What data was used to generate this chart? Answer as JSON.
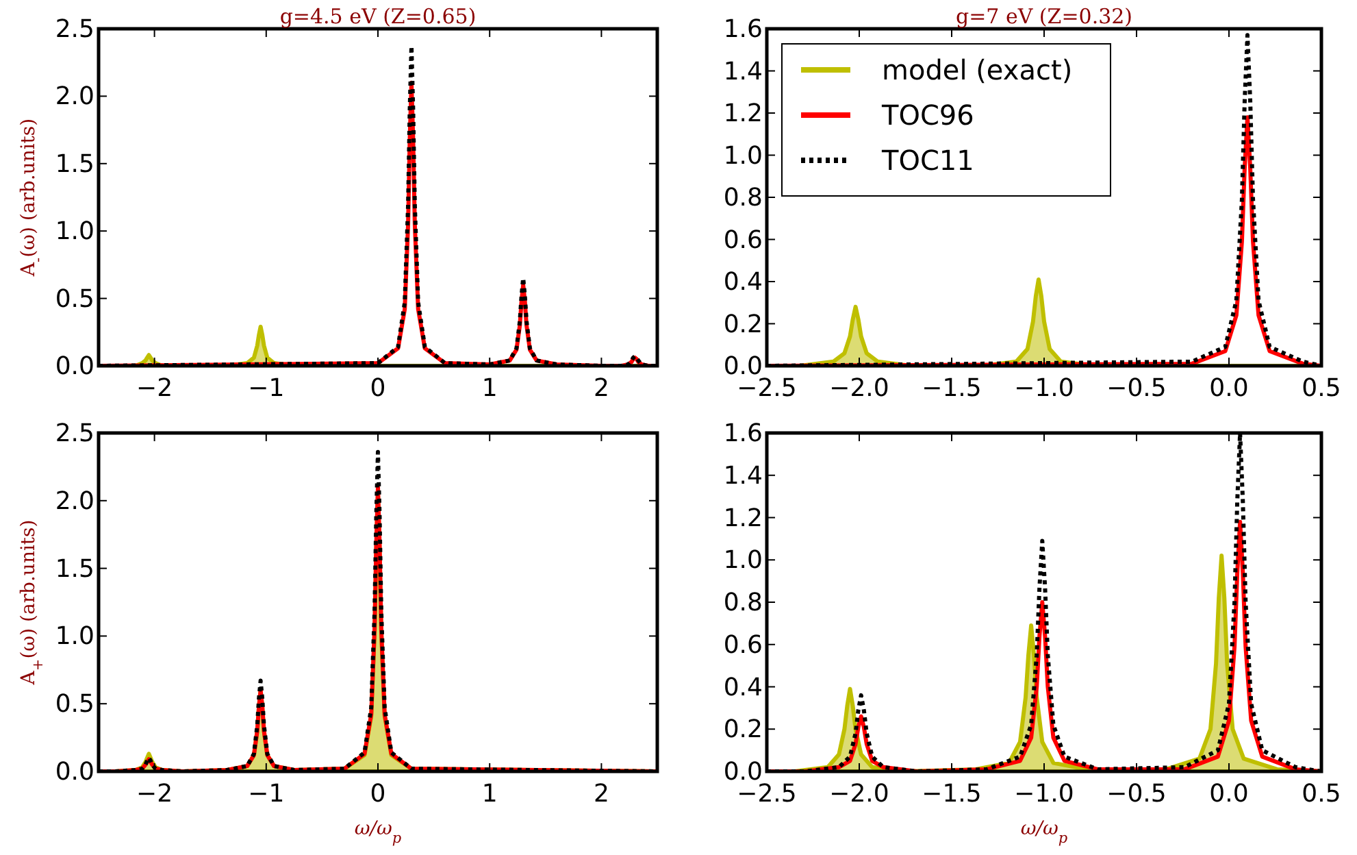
{
  "chart_data": [
    {
      "type": "line",
      "title": "g=4.5 eV (Z=0.65)",
      "ylabel": "A$_{-}$(ω) (arb.units)",
      "xlim": [
        -2.5,
        2.5
      ],
      "ylim": [
        0,
        2.5
      ],
      "xticks": [
        {
          "value": -2,
          "label": "−2"
        },
        {
          "value": -1,
          "label": "−1"
        },
        0,
        1,
        2
      ],
      "yticks": [
        {
          "value": 0,
          "label": "0.0"
        },
        0.5,
        {
          "value": 1,
          "label": "1.0"
        },
        1.5,
        {
          "value": 2,
          "label": "2.0"
        },
        2.5
      ],
      "series": [
        {
          "type": "area",
          "color": "#bfbf00",
          "x": [
            -2.5,
            -2.35,
            -2.17,
            -2.11,
            -2.08,
            -2.065,
            -2.05,
            -2.035,
            -2.02,
            -1.99,
            -1.93,
            -1.75,
            -1.35,
            -1.17,
            -1.11,
            -1.08,
            -1.065,
            -1.05,
            -1.035,
            -1.02,
            -0.99,
            -0.93,
            -0.75,
            2.5
          ],
          "values": [
            0,
            0,
            0,
            0.02,
            0.04,
            0.06,
            0.08,
            0.06,
            0.04,
            0.02,
            0,
            0,
            0,
            0.02,
            0.06,
            0.15,
            0.23,
            0.29,
            0.23,
            0.15,
            0.06,
            0.02,
            0,
            0
          ]
        },
        {
          "color": "#ff0000",
          "line_style": "solid",
          "x": [
            -2.5,
            0,
            0.18,
            0.24,
            0.27,
            0.285,
            0.3,
            0.315,
            0.33,
            0.36,
            0.42,
            0.6,
            1.0,
            1.18,
            1.24,
            1.27,
            1.285,
            1.3,
            1.315,
            1.33,
            1.36,
            1.42,
            1.6,
            2.0,
            2.18,
            2.24,
            2.27,
            2.285,
            2.3,
            2.315,
            2.33,
            2.36,
            2.42,
            2.5
          ],
          "values": [
            0,
            0.02,
            0.13,
            0.42,
            1.05,
            1.68,
            2.1,
            1.68,
            1.05,
            0.42,
            0.13,
            0.02,
            0.01,
            0.04,
            0.12,
            0.3,
            0.48,
            0.6,
            0.48,
            0.3,
            0.12,
            0.04,
            0.01,
            0,
            0,
            0.01,
            0.03,
            0.05,
            0.06,
            0.05,
            0.03,
            0.01,
            0,
            0
          ]
        },
        {
          "color": "#000000",
          "line_style": "dotted",
          "x": [
            -2.5,
            0,
            0.18,
            0.24,
            0.27,
            0.285,
            0.3,
            0.315,
            0.33,
            0.36,
            0.42,
            0.6,
            1.0,
            1.18,
            1.24,
            1.27,
            1.285,
            1.3,
            1.315,
            1.33,
            1.36,
            1.42,
            1.6,
            2.0,
            2.18,
            2.24,
            2.27,
            2.285,
            2.3,
            2.315,
            2.33,
            2.36,
            2.42,
            2.5
          ],
          "values": [
            0,
            0.02,
            0.14,
            0.47,
            1.19,
            1.9,
            2.37,
            1.9,
            1.19,
            0.47,
            0.14,
            0.02,
            0.01,
            0.04,
            0.13,
            0.33,
            0.52,
            0.65,
            0.52,
            0.33,
            0.13,
            0.04,
            0.01,
            0,
            0,
            0.01,
            0.04,
            0.06,
            0.07,
            0.06,
            0.04,
            0.01,
            0,
            0
          ]
        }
      ]
    },
    {
      "type": "line",
      "title": "g=7 eV (Z=0.32)",
      "xlim": [
        -2.5,
        0.5
      ],
      "ylim": [
        0,
        1.6
      ],
      "legend": "top left",
      "xticks": [
        {
          "value": -2.5,
          "label": "−2.5"
        },
        {
          "value": -2,
          "label": "−2.0"
        },
        {
          "value": -1.5,
          "label": "−1.5"
        },
        {
          "value": -1,
          "label": "−1.0"
        },
        {
          "value": -0.5,
          "label": "−0.5"
        },
        {
          "value": 0,
          "label": "0.0"
        },
        0.5
      ],
      "yticks": [
        {
          "value": 0,
          "label": "0.0"
        },
        0.2,
        0.4,
        0.6,
        0.8,
        {
          "value": 1,
          "label": "1.0"
        },
        1.2,
        1.4,
        1.6
      ],
      "series": [
        {
          "type": "area",
          "name": "model (exact)",
          "color": "#bfbf00",
          "x": [
            -2.5,
            -2.32,
            -2.14,
            -2.08,
            -2.05,
            -2.035,
            -2.02,
            -2.005,
            -1.99,
            -1.96,
            -1.9,
            -1.72,
            -1.33,
            -1.15,
            -1.09,
            -1.06,
            -1.045,
            -1.03,
            -1.015,
            -1.0,
            -0.97,
            -0.91,
            -0.73,
            0.5
          ],
          "values": [
            0,
            0,
            0.02,
            0.06,
            0.14,
            0.22,
            0.28,
            0.22,
            0.14,
            0.06,
            0.02,
            0,
            0,
            0.02,
            0.08,
            0.21,
            0.33,
            0.41,
            0.33,
            0.21,
            0.08,
            0.02,
            0,
            0
          ]
        },
        {
          "name": "TOC96",
          "color": "#ff0000",
          "line_style": "solid",
          "x": [
            -2.5,
            -0.2,
            -0.02,
            0.04,
            0.07,
            0.085,
            0.1,
            0.115,
            0.13,
            0.16,
            0.22,
            0.4,
            0.5
          ],
          "values": [
            0,
            0.01,
            0.07,
            0.24,
            0.59,
            0.94,
            1.18,
            0.94,
            0.59,
            0.24,
            0.07,
            0.01,
            0
          ]
        },
        {
          "name": "TOC11",
          "color": "#000000",
          "line_style": "dotted",
          "x": [
            -2.5,
            -0.2,
            -0.02,
            0.04,
            0.07,
            0.085,
            0.1,
            0.115,
            0.13,
            0.16,
            0.22,
            0.4,
            0.5
          ],
          "values": [
            0,
            0.02,
            0.09,
            0.31,
            0.79,
            1.26,
            1.57,
            1.26,
            0.79,
            0.31,
            0.09,
            0.02,
            0
          ]
        }
      ]
    },
    {
      "type": "line",
      "xlabel": "ω/ω$_{p}$",
      "ylabel": "A$_{+}$(ω) (arb.units)",
      "xlim": [
        -2.5,
        2.5
      ],
      "ylim": [
        0,
        2.5
      ],
      "xticks": [
        {
          "value": -2,
          "label": "−2"
        },
        {
          "value": -1,
          "label": "−1"
        },
        0,
        1,
        2
      ],
      "yticks": [
        {
          "value": 0,
          "label": "0.0"
        },
        0.5,
        {
          "value": 1,
          "label": "1.0"
        },
        1.5,
        {
          "value": 2,
          "label": "2.0"
        },
        2.5
      ],
      "series": [
        {
          "type": "area",
          "color": "#bfbf00",
          "x": [
            -2.5,
            -2.35,
            -2.17,
            -2.11,
            -2.08,
            -2.065,
            -2.05,
            -2.035,
            -2.02,
            -1.99,
            -1.93,
            -1.75,
            -1.35,
            -1.17,
            -1.11,
            -1.08,
            -1.065,
            -1.05,
            -1.035,
            -1.02,
            -0.99,
            -0.93,
            -0.75,
            -0.3,
            -0.12,
            -0.06,
            -0.03,
            -0.015,
            0,
            0.015,
            0.03,
            0.06,
            0.12,
            0.3,
            2.5
          ],
          "values": [
            0,
            0,
            0.01,
            0.03,
            0.07,
            0.1,
            0.13,
            0.1,
            0.07,
            0.03,
            0.01,
            0,
            0.01,
            0.04,
            0.12,
            0.3,
            0.48,
            0.6,
            0.48,
            0.3,
            0.12,
            0.04,
            0.01,
            0.02,
            0.12,
            0.41,
            1.03,
            1.64,
            2.05,
            1.64,
            1.03,
            0.41,
            0.12,
            0.02,
            0
          ]
        },
        {
          "color": "#ff0000",
          "line_style": "solid",
          "x": [
            -2.5,
            -2.35,
            -2.17,
            -2.11,
            -2.08,
            -2.065,
            -2.05,
            -2.035,
            -2.02,
            -1.99,
            -1.93,
            -1.75,
            -1.35,
            -1.17,
            -1.11,
            -1.08,
            -1.065,
            -1.05,
            -1.035,
            -1.02,
            -0.99,
            -0.93,
            -0.75,
            -0.3,
            -0.12,
            -0.06,
            -0.03,
            -0.015,
            0,
            0.015,
            0.03,
            0.06,
            0.12,
            0.3,
            2.5
          ],
          "values": [
            0,
            0,
            0.01,
            0.02,
            0.05,
            0.07,
            0.09,
            0.07,
            0.05,
            0.02,
            0.01,
            0,
            0.01,
            0.04,
            0.12,
            0.3,
            0.48,
            0.6,
            0.48,
            0.3,
            0.12,
            0.04,
            0.01,
            0.02,
            0.13,
            0.42,
            1.05,
            1.68,
            2.1,
            1.68,
            1.05,
            0.42,
            0.13,
            0.02,
            0
          ]
        },
        {
          "color": "#000000",
          "line_style": "dotted",
          "x": [
            -2.5,
            -2.35,
            -2.17,
            -2.11,
            -2.08,
            -2.065,
            -2.05,
            -2.035,
            -2.02,
            -1.99,
            -1.93,
            -1.75,
            -1.35,
            -1.17,
            -1.11,
            -1.08,
            -1.065,
            -1.05,
            -1.035,
            -1.02,
            -0.99,
            -0.93,
            -0.75,
            -0.3,
            -0.12,
            -0.06,
            -0.03,
            -0.015,
            0,
            0.015,
            0.03,
            0.06,
            0.12,
            0.3,
            2.5
          ],
          "values": [
            0,
            0,
            0.01,
            0.02,
            0.05,
            0.08,
            0.1,
            0.08,
            0.05,
            0.02,
            0.01,
            0,
            0.01,
            0.04,
            0.13,
            0.34,
            0.54,
            0.67,
            0.54,
            0.34,
            0.13,
            0.04,
            0.01,
            0.02,
            0.14,
            0.47,
            1.18,
            1.89,
            2.36,
            1.89,
            1.18,
            0.47,
            0.14,
            0.02,
            0
          ]
        }
      ]
    },
    {
      "type": "line",
      "xlabel": "ω/ω$_{p}$",
      "xlim": [
        -2.5,
        0.5
      ],
      "ylim": [
        0,
        1.6
      ],
      "xticks": [
        {
          "value": -2.5,
          "label": "−2.5"
        },
        {
          "value": -2,
          "label": "−2.0"
        },
        {
          "value": -1.5,
          "label": "−1.5"
        },
        {
          "value": -1,
          "label": "−1.0"
        },
        {
          "value": -0.5,
          "label": "−0.5"
        },
        {
          "value": 0,
          "label": "0.0"
        },
        0.5
      ],
      "yticks": [
        {
          "value": 0,
          "label": "0.0"
        },
        0.2,
        0.4,
        0.6,
        0.8,
        {
          "value": 1,
          "label": "1.0"
        },
        1.2,
        1.4,
        1.6
      ],
      "series": [
        {
          "type": "area",
          "color": "#bfbf00",
          "x": [
            -2.5,
            -2.35,
            -2.17,
            -2.11,
            -2.08,
            -2.065,
            -2.05,
            -2.035,
            -2.02,
            -1.99,
            -1.93,
            -1.75,
            -1.37,
            -1.19,
            -1.13,
            -1.1,
            -1.085,
            -1.07,
            -1.055,
            -1.04,
            -1.01,
            -0.95,
            -0.77,
            -0.34,
            -0.16,
            -0.1,
            -0.07,
            -0.055,
            -0.04,
            -0.025,
            -0.01,
            0.02,
            0.08,
            0.26,
            0.5
          ],
          "values": [
            0,
            0,
            0.02,
            0.08,
            0.2,
            0.31,
            0.39,
            0.31,
            0.2,
            0.08,
            0.02,
            0,
            0.01,
            0.04,
            0.14,
            0.35,
            0.55,
            0.69,
            0.55,
            0.35,
            0.14,
            0.04,
            0.01,
            0.01,
            0.06,
            0.2,
            0.51,
            0.82,
            1.02,
            0.82,
            0.51,
            0.2,
            0.06,
            0.01,
            0
          ]
        },
        {
          "color": "#ff0000",
          "line_style": "solid",
          "x": [
            -2.5,
            -2.29,
            -2.11,
            -2.05,
            -2.02,
            -2.005,
            -1.99,
            -1.975,
            -1.96,
            -1.93,
            -1.87,
            -1.69,
            -1.31,
            -1.13,
            -1.07,
            -1.04,
            -1.025,
            -1.01,
            -0.995,
            -0.98,
            -0.95,
            -0.89,
            -0.71,
            -0.24,
            -0.06,
            0,
            0.03,
            0.045,
            0.06,
            0.075,
            0.09,
            0.12,
            0.18,
            0.36,
            0.5
          ],
          "values": [
            0,
            0,
            0.02,
            0.05,
            0.13,
            0.21,
            0.26,
            0.21,
            0.13,
            0.05,
            0.02,
            0,
            0.01,
            0.05,
            0.16,
            0.4,
            0.64,
            0.8,
            0.64,
            0.4,
            0.16,
            0.05,
            0.01,
            0.01,
            0.07,
            0.24,
            0.59,
            0.94,
            1.18,
            0.94,
            0.59,
            0.24,
            0.07,
            0.01,
            0
          ]
        },
        {
          "color": "#000000",
          "line_style": "dotted",
          "x": [
            -2.5,
            -2.29,
            -2.11,
            -2.05,
            -2.02,
            -2.005,
            -1.99,
            -1.975,
            -1.96,
            -1.93,
            -1.87,
            -1.69,
            -1.31,
            -1.13,
            -1.07,
            -1.04,
            -1.025,
            -1.01,
            -0.995,
            -0.98,
            -0.95,
            -0.89,
            -0.71,
            -0.24,
            -0.06,
            0,
            0.03,
            0.045,
            0.06,
            0.075,
            0.09,
            0.12,
            0.18,
            0.36,
            0.5
          ],
          "values": [
            0,
            0,
            0.02,
            0.07,
            0.18,
            0.29,
            0.36,
            0.29,
            0.18,
            0.07,
            0.02,
            0,
            0.01,
            0.07,
            0.22,
            0.55,
            0.87,
            1.09,
            0.87,
            0.55,
            0.22,
            0.07,
            0.01,
            0.02,
            0.1,
            0.32,
            0.8,
            1.28,
            1.6,
            1.28,
            0.8,
            0.32,
            0.1,
            0.02,
            0
          ]
        }
      ]
    }
  ]
}
